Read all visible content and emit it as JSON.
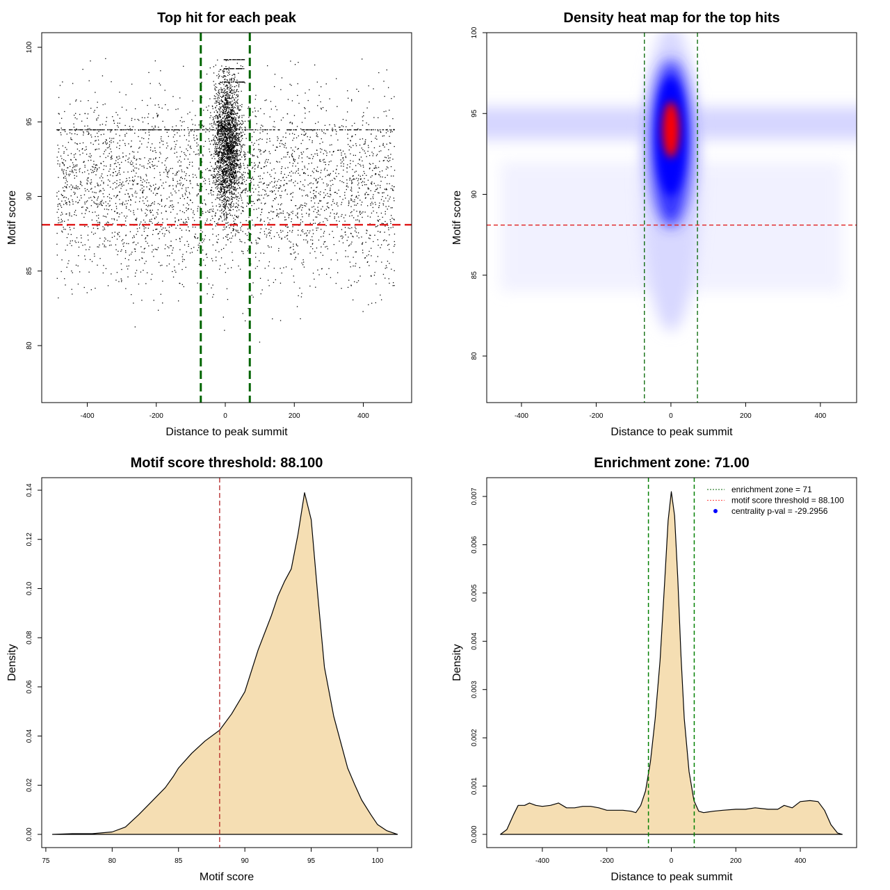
{
  "chart_data": [
    {
      "type": "scatter",
      "title": "Top hit for each peak",
      "xlabel": "Distance to peak summit",
      "ylabel": "Motif score",
      "xlim": [
        -532,
        540
      ],
      "ylim": [
        76.18,
        100.98
      ],
      "xticks": [
        "-400",
        "-200",
        "0",
        "200",
        "400"
      ],
      "yticks": [
        "80",
        "85",
        "90",
        "95",
        "100"
      ],
      "vlines": [
        -71,
        71
      ],
      "hline": 88.1,
      "colors": {
        "points": "#000000",
        "vlines": "#006400",
        "hline": "#e02020"
      }
    },
    {
      "type": "heatmap",
      "title": "Density heat map for the top hits",
      "xlabel": "Distance to peak summit",
      "ylabel": "Motif score",
      "xlim": [
        -493,
        497
      ],
      "ylim": [
        77.12,
        100
      ],
      "xticks": [
        "-400",
        "-200",
        "0",
        "200",
        "400"
      ],
      "yticks": [
        "80",
        "85",
        "90",
        "95",
        "100"
      ],
      "vlines": [
        -71,
        71
      ],
      "hline": 88.1,
      "peak": {
        "x": 0,
        "y": 94
      },
      "colors": {
        "low": "#ffffff",
        "mid": "#0000ff",
        "high": "#ff0000",
        "vlines": "#006400",
        "hline": "#e02020"
      }
    },
    {
      "type": "area",
      "title": "Motif score threshold: 88.100",
      "xlabel": "Motif score",
      "ylabel": "Density",
      "xlim": [
        74.69,
        102.57
      ],
      "ylim": [
        -0.00537,
        0.1451
      ],
      "xticks": [
        "75",
        "80",
        "85",
        "90",
        "95",
        "100"
      ],
      "yticks": [
        "0.00",
        "0.02",
        "0.04",
        "0.06",
        "0.08",
        "0.10",
        "0.12",
        "0.14"
      ],
      "vline": 88.1,
      "x": [
        75.5,
        77,
        78.5,
        80,
        81,
        82,
        83,
        84,
        84.6,
        85,
        86,
        87,
        88.1,
        89,
        90,
        91,
        92,
        92.5,
        93,
        93.5,
        94,
        94.5,
        95,
        95.5,
        96,
        96.7,
        97.2,
        97.75,
        98.3,
        98.8,
        99.5,
        100,
        100.7,
        101.5
      ],
      "y": [
        0,
        0.0003,
        0.0003,
        0.001,
        0.003,
        0.008,
        0.0135,
        0.019,
        0.0235,
        0.027,
        0.033,
        0.038,
        0.0424,
        0.049,
        0.058,
        0.075,
        0.089,
        0.097,
        0.103,
        0.108,
        0.122,
        0.139,
        0.128,
        0.097,
        0.068,
        0.048,
        0.038,
        0.027,
        0.02,
        0.014,
        0.008,
        0.004,
        0.0015,
        0
      ],
      "colors": {
        "fill": "#f5deb3",
        "line": "#000000",
        "vline": "#b22222"
      }
    },
    {
      "type": "area",
      "title": "Enrichment zone: 71.00",
      "xlabel": "Distance to peak summit",
      "ylabel": "Density",
      "xlim": [
        -572.5,
        574.6
      ],
      "ylim": [
        -0.000274,
        0.007389
      ],
      "xticks": [
        "-400",
        "-200",
        "0",
        "200",
        "400"
      ],
      "yticks": [
        "0.000",
        "0.001",
        "0.002",
        "0.003",
        "0.004",
        "0.005",
        "0.006",
        "0.007"
      ],
      "vlines": [
        -71,
        71
      ],
      "x": [
        -530,
        -510,
        -490,
        -475,
        -455,
        -440,
        -420,
        -400,
        -375,
        -350,
        -325,
        -300,
        -275,
        -250,
        -225,
        -200,
        -175,
        -150,
        -125,
        -110,
        -95,
        -80,
        -65,
        -50,
        -35,
        -20,
        -10,
        0,
        10,
        20,
        30,
        40,
        55,
        70,
        85,
        100,
        130,
        160,
        200,
        230,
        260,
        300,
        330,
        350,
        375,
        400,
        430,
        455,
        475,
        495,
        515,
        530
      ],
      "y": [
        0,
        0.0001,
        0.0004,
        0.0006,
        0.0006,
        0.00065,
        0.0006,
        0.00058,
        0.0006,
        0.00065,
        0.00055,
        0.00055,
        0.00058,
        0.00058,
        0.00055,
        0.0005,
        0.0005,
        0.0005,
        0.00048,
        0.00045,
        0.0006,
        0.0009,
        0.0015,
        0.0024,
        0.0036,
        0.0053,
        0.0065,
        0.0071,
        0.0066,
        0.0053,
        0.0037,
        0.0024,
        0.0013,
        0.0007,
        0.00048,
        0.00045,
        0.00048,
        0.0005,
        0.00052,
        0.00052,
        0.00055,
        0.00052,
        0.00052,
        0.0006,
        0.00055,
        0.00068,
        0.0007,
        0.00068,
        0.0005,
        0.0002,
        3e-05,
        0
      ],
      "legend": [
        {
          "label": "enrichment zone = 71",
          "style": "dotted",
          "color": "#006400"
        },
        {
          "label": "motif score threshold = 88.100",
          "style": "dotted",
          "color": "#ff4040"
        },
        {
          "label": "centrality p-val = -29.2956",
          "style": "point",
          "color": "#0000ff"
        }
      ],
      "legend_position": "top-right",
      "colors": {
        "fill": "#f5deb3",
        "line": "#000000",
        "vlines": "#008000"
      }
    }
  ]
}
